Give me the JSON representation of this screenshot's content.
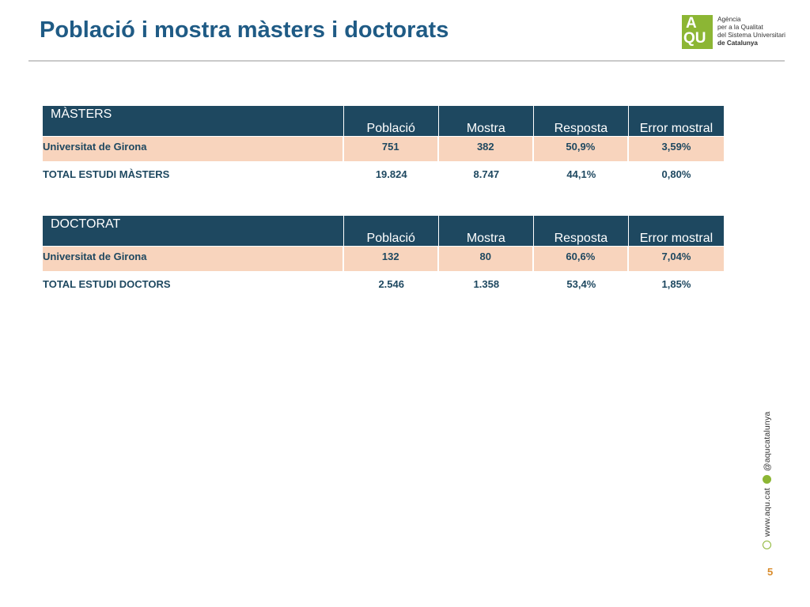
{
  "slide": {
    "title": "Població i mostra màsters i doctorats",
    "page_number": "5"
  },
  "logo": {
    "letter_a": "A",
    "letters_qu": "QU",
    "lines": [
      "Agència",
      "per a la Qualitat",
      "del Sistema Universitari",
      "de Catalunya"
    ],
    "color": "#8cb634"
  },
  "side": {
    "website": "www.aqu.cat",
    "twitter": "@aqucatalunya",
    "globe_icon": "globe-icon",
    "twitter_icon": "twitter-icon"
  },
  "columns": [
    "Població",
    "Mostra",
    "Resposta",
    "Error mostral"
  ],
  "tables": {
    "masters": {
      "section": "MÀSTERS",
      "rows": [
        {
          "name": "Universitat de Girona",
          "values": [
            "751",
            "382",
            "50,9%",
            "3,59%"
          ]
        },
        {
          "name": "TOTAL ESTUDI MÀSTERS",
          "values": [
            "19.824",
            "8.747",
            "44,1%",
            "0,80%"
          ]
        }
      ]
    },
    "doctorat": {
      "section": "DOCTORAT",
      "rows": [
        {
          "name": "Universitat de Girona",
          "values": [
            "132",
            "80",
            "60,6%",
            "7,04%"
          ]
        },
        {
          "name": "TOTAL ESTUDI DOCTORS",
          "values": [
            "2.546",
            "1.358",
            "53,4%",
            "1,85%"
          ]
        }
      ]
    }
  },
  "colors": {
    "header_bg": "#1e4860",
    "highlight_row": "#f8d4bd",
    "title": "#1f5b85"
  }
}
